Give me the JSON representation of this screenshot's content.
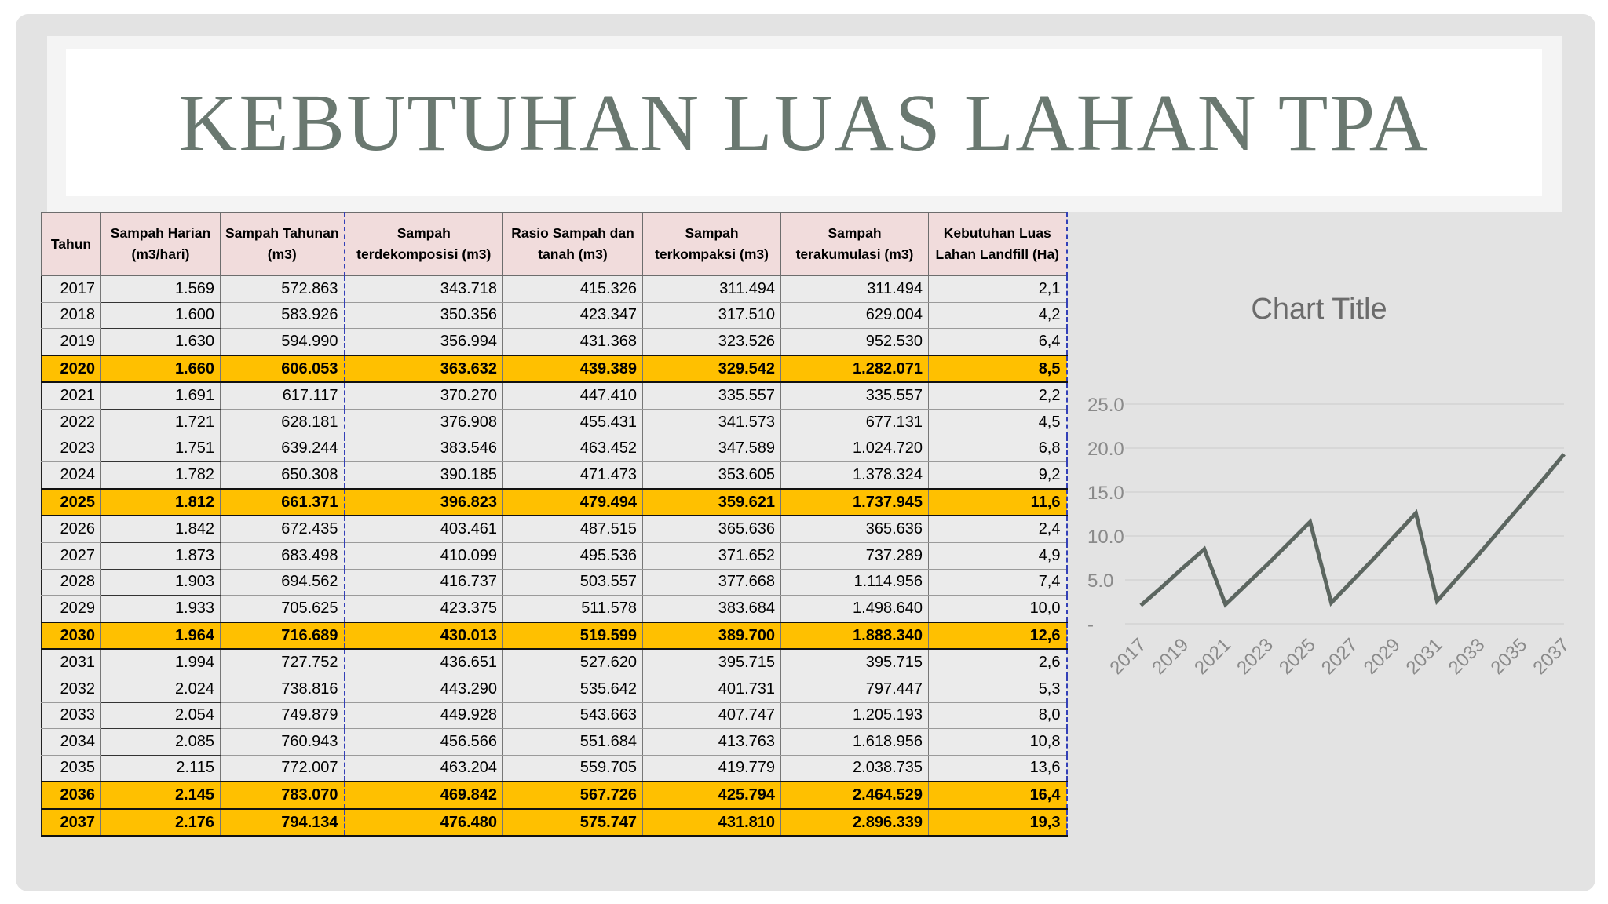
{
  "title": "KEBUTUHAN LUAS LAHAN TPA",
  "table": {
    "headers": [
      "Tahun",
      "Sampah Harian (m3/hari)",
      "Sampah Tahunan (m3)",
      "Sampah terdekomposisi (m3)",
      "Rasio Sampah dan tanah (m3)",
      "Sampah terkompaksi (m3)",
      "Sampah terakumulasi (m3)",
      "Kebutuhan Luas Lahan Landfill (Ha)"
    ],
    "rows": [
      {
        "cells": [
          "2017",
          "1.569",
          "572.863",
          "343.718",
          "415.326",
          "311.494",
          "311.494",
          "2,1"
        ],
        "highlight": false
      },
      {
        "cells": [
          "2018",
          "1.600",
          "583.926",
          "350.356",
          "423.347",
          "317.510",
          "629.004",
          "4,2"
        ],
        "highlight": false
      },
      {
        "cells": [
          "2019",
          "1.630",
          "594.990",
          "356.994",
          "431.368",
          "323.526",
          "952.530",
          "6,4"
        ],
        "highlight": false
      },
      {
        "cells": [
          "2020",
          "1.660",
          "606.053",
          "363.632",
          "439.389",
          "329.542",
          "1.282.071",
          "8,5"
        ],
        "highlight": true
      },
      {
        "cells": [
          "2021",
          "1.691",
          "617.117",
          "370.270",
          "447.410",
          "335.557",
          "335.557",
          "2,2"
        ],
        "highlight": false
      },
      {
        "cells": [
          "2022",
          "1.721",
          "628.181",
          "376.908",
          "455.431",
          "341.573",
          "677.131",
          "4,5"
        ],
        "highlight": false
      },
      {
        "cells": [
          "2023",
          "1.751",
          "639.244",
          "383.546",
          "463.452",
          "347.589",
          "1.024.720",
          "6,8"
        ],
        "highlight": false
      },
      {
        "cells": [
          "2024",
          "1.782",
          "650.308",
          "390.185",
          "471.473",
          "353.605",
          "1.378.324",
          "9,2"
        ],
        "highlight": false
      },
      {
        "cells": [
          "2025",
          "1.812",
          "661.371",
          "396.823",
          "479.494",
          "359.621",
          "1.737.945",
          "11,6"
        ],
        "highlight": true
      },
      {
        "cells": [
          "2026",
          "1.842",
          "672.435",
          "403.461",
          "487.515",
          "365.636",
          "365.636",
          "2,4"
        ],
        "highlight": false
      },
      {
        "cells": [
          "2027",
          "1.873",
          "683.498",
          "410.099",
          "495.536",
          "371.652",
          "737.289",
          "4,9"
        ],
        "highlight": false
      },
      {
        "cells": [
          "2028",
          "1.903",
          "694.562",
          "416.737",
          "503.557",
          "377.668",
          "1.114.956",
          "7,4"
        ],
        "highlight": false
      },
      {
        "cells": [
          "2029",
          "1.933",
          "705.625",
          "423.375",
          "511.578",
          "383.684",
          "1.498.640",
          "10,0"
        ],
        "highlight": false
      },
      {
        "cells": [
          "2030",
          "1.964",
          "716.689",
          "430.013",
          "519.599",
          "389.700",
          "1.888.340",
          "12,6"
        ],
        "highlight": true
      },
      {
        "cells": [
          "2031",
          "1.994",
          "727.752",
          "436.651",
          "527.620",
          "395.715",
          "395.715",
          "2,6"
        ],
        "highlight": false
      },
      {
        "cells": [
          "2032",
          "2.024",
          "738.816",
          "443.290",
          "535.642",
          "401.731",
          "797.447",
          "5,3"
        ],
        "highlight": false
      },
      {
        "cells": [
          "2033",
          "2.054",
          "749.879",
          "449.928",
          "543.663",
          "407.747",
          "1.205.193",
          "8,0"
        ],
        "highlight": false
      },
      {
        "cells": [
          "2034",
          "2.085",
          "760.943",
          "456.566",
          "551.684",
          "413.763",
          "1.618.956",
          "10,8"
        ],
        "highlight": false
      },
      {
        "cells": [
          "2035",
          "2.115",
          "772.007",
          "463.204",
          "559.705",
          "419.779",
          "2.038.735",
          "13,6"
        ],
        "highlight": false
      },
      {
        "cells": [
          "2036",
          "2.145",
          "783.070",
          "469.842",
          "567.726",
          "425.794",
          "2.464.529",
          "16,4"
        ],
        "highlight": true
      },
      {
        "cells": [
          "2037",
          "2.176",
          "794.134",
          "476.480",
          "575.747",
          "431.810",
          "2.896.339",
          "19,3"
        ],
        "highlight": true
      }
    ]
  },
  "chart_data": {
    "type": "line",
    "title": "Chart Title",
    "x": [
      2017,
      2018,
      2019,
      2020,
      2021,
      2022,
      2023,
      2024,
      2025,
      2026,
      2027,
      2028,
      2029,
      2030,
      2031,
      2032,
      2033,
      2034,
      2035,
      2036,
      2037
    ],
    "series": [
      {
        "values": [
          2.1,
          4.2,
          6.4,
          8.5,
          2.2,
          4.5,
          6.8,
          9.2,
          11.6,
          2.4,
          4.9,
          7.4,
          10.0,
          12.6,
          2.6,
          5.3,
          8.0,
          10.8,
          13.6,
          16.4,
          19.3
        ]
      }
    ],
    "x_tick_labels": [
      "2017",
      "2019",
      "2021",
      "2023",
      "2025",
      "2027",
      "2029",
      "2031",
      "2033",
      "2035",
      "2037"
    ],
    "y_tick_labels": [
      "-",
      "5.0",
      "10.0",
      "15.0",
      "20.0",
      "25.0"
    ],
    "ylim": [
      0,
      25
    ],
    "grid": true,
    "line_color": "#5c6660"
  }
}
